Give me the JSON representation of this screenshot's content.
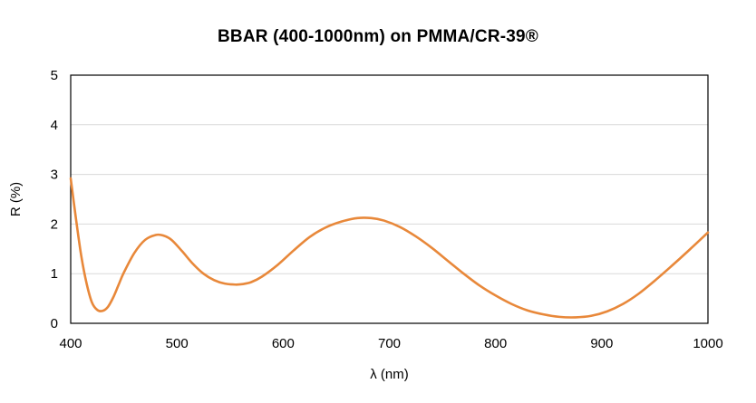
{
  "chart_data": {
    "type": "line",
    "title": "BBAR (400-1000nm) on PMMA/CR-39®",
    "xlabel": "λ (nm)",
    "ylabel": "R (%)",
    "xlim": [
      400,
      1000
    ],
    "ylim": [
      0,
      5
    ],
    "x_ticks": [
      "400",
      "500",
      "600",
      "700",
      "800",
      "900",
      "1000"
    ],
    "y_ticks": [
      "0",
      "1",
      "2",
      "3",
      "4",
      "5"
    ],
    "grid": true,
    "legend": "none",
    "series": [
      {
        "color": "#e8883a",
        "x": [
          400,
          405,
          410,
          415,
          420,
          425,
          430,
          435,
          440,
          445,
          450,
          460,
          470,
          480,
          487,
          495,
          505,
          515,
          525,
          535,
          545,
          555,
          562,
          570,
          580,
          595,
          610,
          625,
          640,
          655,
          670,
          683,
          695,
          710,
          725,
          740,
          755,
          770,
          785,
          800,
          815,
          830,
          845,
          860,
          875,
          890,
          905,
          920,
          935,
          950,
          965,
          980,
          1000
        ],
        "y": [
          2.92,
          2.1,
          1.35,
          0.8,
          0.42,
          0.27,
          0.25,
          0.33,
          0.52,
          0.77,
          1.02,
          1.42,
          1.68,
          1.78,
          1.77,
          1.68,
          1.45,
          1.2,
          1.0,
          0.87,
          0.8,
          0.78,
          0.79,
          0.83,
          0.94,
          1.18,
          1.47,
          1.74,
          1.93,
          2.05,
          2.12,
          2.12,
          2.07,
          1.94,
          1.75,
          1.52,
          1.26,
          1.0,
          0.76,
          0.56,
          0.39,
          0.26,
          0.18,
          0.13,
          0.12,
          0.15,
          0.24,
          0.39,
          0.6,
          0.86,
          1.14,
          1.43,
          1.83
        ]
      }
    ]
  }
}
